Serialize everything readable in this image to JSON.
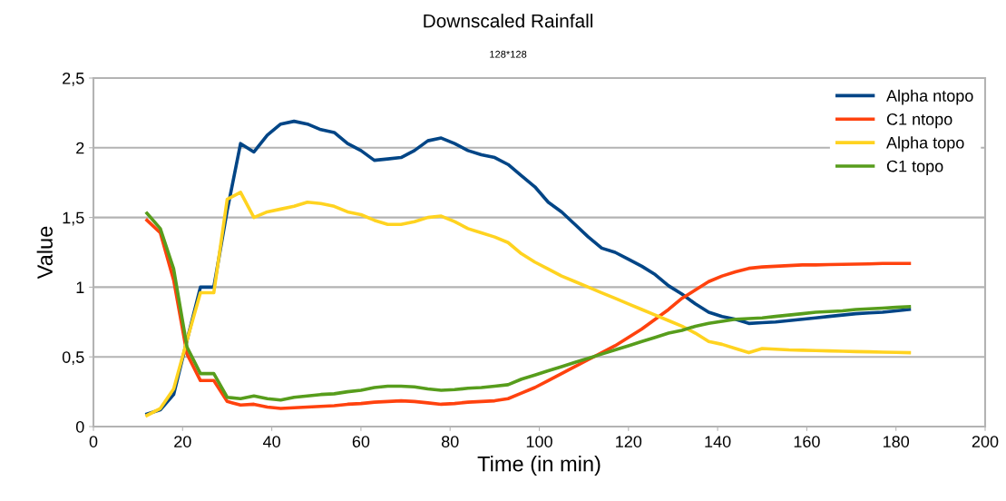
{
  "chart_data": {
    "type": "line",
    "title": "Downscaled Rainfall",
    "subtitle": "128*128",
    "xlabel": "Time (in min)",
    "ylabel": "Value",
    "x": [
      12,
      15,
      18,
      21,
      24,
      27,
      30,
      33,
      36,
      39,
      42,
      45,
      48,
      51,
      54,
      57,
      60,
      63,
      66,
      69,
      72,
      75,
      78,
      81,
      84,
      87,
      90,
      93,
      96,
      99,
      102,
      105,
      108,
      111,
      114,
      117,
      120,
      123,
      126,
      129,
      132,
      135,
      138,
      141,
      144,
      147,
      150,
      153,
      156,
      159,
      162,
      165,
      168,
      171,
      174,
      177,
      180,
      183
    ],
    "series": [
      {
        "name": "Alpha ntopo",
        "color": "#004586",
        "values": [
          0.09,
          0.12,
          0.23,
          0.62,
          1.0,
          1.0,
          1.55,
          2.03,
          1.97,
          2.09,
          2.17,
          2.19,
          2.17,
          2.13,
          2.11,
          2.03,
          1.98,
          1.91,
          1.92,
          1.93,
          1.98,
          2.05,
          2.07,
          2.03,
          1.98,
          1.95,
          1.93,
          1.88,
          1.8,
          1.72,
          1.61,
          1.54,
          1.45,
          1.36,
          1.28,
          1.25,
          1.2,
          1.15,
          1.09,
          1.01,
          0.95,
          0.88,
          0.82,
          0.79,
          0.77,
          0.74,
          0.745,
          0.75,
          0.76,
          0.77,
          0.78,
          0.79,
          0.8,
          0.81,
          0.815,
          0.82,
          0.83,
          0.84
        ]
      },
      {
        "name": "C1 ntopo",
        "color": "#ff420e",
        "values": [
          1.48,
          1.39,
          1.05,
          0.52,
          0.33,
          0.33,
          0.18,
          0.155,
          0.16,
          0.14,
          0.13,
          0.135,
          0.14,
          0.145,
          0.15,
          0.16,
          0.165,
          0.175,
          0.18,
          0.185,
          0.18,
          0.17,
          0.16,
          0.165,
          0.175,
          0.18,
          0.185,
          0.2,
          0.24,
          0.28,
          0.33,
          0.38,
          0.43,
          0.48,
          0.53,
          0.58,
          0.64,
          0.7,
          0.77,
          0.84,
          0.92,
          0.98,
          1.04,
          1.08,
          1.11,
          1.135,
          1.145,
          1.15,
          1.155,
          1.16,
          1.16,
          1.162,
          1.164,
          1.165,
          1.167,
          1.17,
          1.17,
          1.17
        ]
      },
      {
        "name": "Alpha topo",
        "color": "#ffd320",
        "values": [
          0.08,
          0.13,
          0.27,
          0.62,
          0.96,
          0.96,
          1.63,
          1.68,
          1.5,
          1.54,
          1.56,
          1.58,
          1.61,
          1.6,
          1.58,
          1.54,
          1.52,
          1.48,
          1.45,
          1.45,
          1.47,
          1.5,
          1.51,
          1.47,
          1.42,
          1.39,
          1.36,
          1.32,
          1.24,
          1.18,
          1.13,
          1.08,
          1.04,
          1.0,
          0.96,
          0.92,
          0.88,
          0.84,
          0.8,
          0.76,
          0.72,
          0.67,
          0.61,
          0.59,
          0.56,
          0.53,
          0.56,
          0.555,
          0.55,
          0.548,
          0.545,
          0.543,
          0.54,
          0.538,
          0.536,
          0.534,
          0.532,
          0.53
        ]
      },
      {
        "name": "C1 topo",
        "color": "#579d1c",
        "values": [
          1.53,
          1.42,
          1.13,
          0.57,
          0.38,
          0.38,
          0.21,
          0.2,
          0.22,
          0.2,
          0.19,
          0.21,
          0.22,
          0.23,
          0.235,
          0.25,
          0.26,
          0.28,
          0.29,
          0.29,
          0.285,
          0.27,
          0.26,
          0.265,
          0.275,
          0.28,
          0.29,
          0.3,
          0.34,
          0.37,
          0.4,
          0.43,
          0.46,
          0.49,
          0.52,
          0.55,
          0.58,
          0.61,
          0.64,
          0.67,
          0.69,
          0.72,
          0.74,
          0.755,
          0.77,
          0.775,
          0.78,
          0.79,
          0.8,
          0.81,
          0.82,
          0.825,
          0.83,
          0.84,
          0.845,
          0.85,
          0.855,
          0.86
        ]
      }
    ],
    "xlim": [
      0,
      200
    ],
    "xticks": [
      0,
      20,
      40,
      60,
      80,
      100,
      120,
      140,
      160,
      180,
      200
    ],
    "ylim": [
      0,
      2.5
    ],
    "yticks": [
      0,
      {
        "value": 0.5,
        "label": "0,5"
      },
      1,
      {
        "value": 1.5,
        "label": "1,5"
      },
      2,
      {
        "value": 2.5,
        "label": "2,5"
      }
    ],
    "grid": "y",
    "legend": "top right",
    "marker": "none",
    "line_style": "solid"
  }
}
